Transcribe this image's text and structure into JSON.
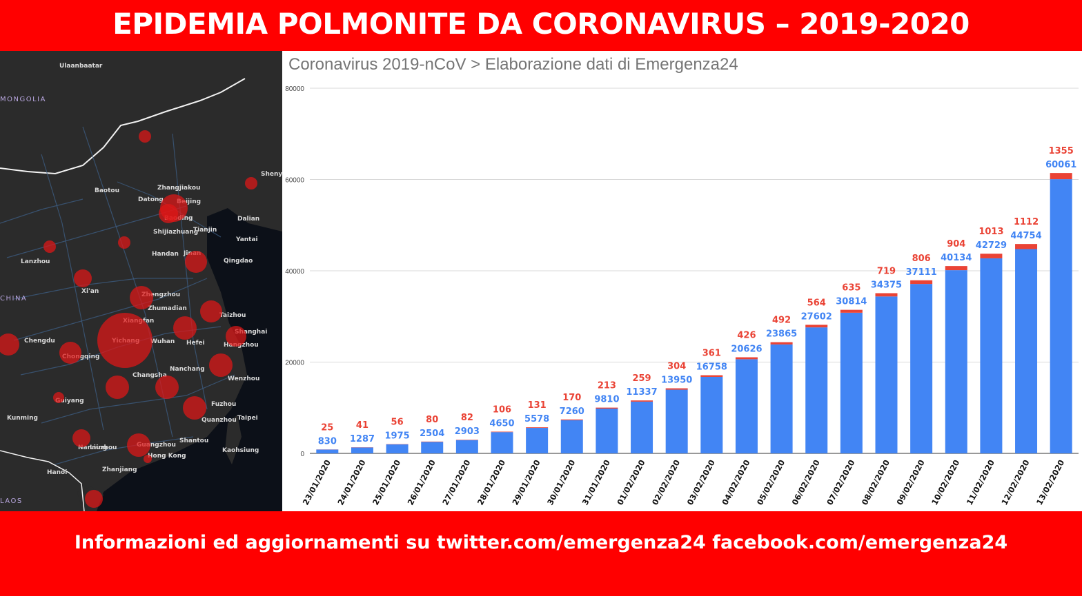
{
  "header": {
    "title": "EPIDEMIA POLMONITE DA CORONAVIRUS – 2019-2020"
  },
  "footer": {
    "text": "Informazioni ed aggiornamenti su twitter.com/emergenza24  facebook.com/emergenza24"
  },
  "map": {
    "labels": [
      "Ulaanbaatar",
      "MONGOLIA",
      "CHINA",
      "Baotou",
      "Datong",
      "Zhangjiakou",
      "Beijing",
      "Baoding",
      "Shijiazhuang",
      "Tianjin",
      "Dalian",
      "Shenyang",
      "Yantai",
      "Qingdao",
      "Jinan",
      "Handan",
      "Lanzhou",
      "Zhengzhou",
      "Xi'an",
      "Zhumadian",
      "Xiangfan",
      "Yichang",
      "Wuhan",
      "Hefei",
      "Taizhou",
      "Shanghai",
      "Hangzhou",
      "Chengdu",
      "Chongqing",
      "Changsha",
      "Nanchang",
      "Wenzhou",
      "Guiyang",
      "Kunming",
      "Fuzhou",
      "Quanzhou",
      "Taipei",
      "Liuzhou",
      "Nanning",
      "Guangzhou",
      "Shantou",
      "Hong Kong",
      "Kaohsiung",
      "Zhanjiang",
      "Hanoi",
      "LAOS"
    ]
  },
  "chart_data": {
    "type": "bar",
    "stacked": true,
    "title": "Coronavirus 2019-nCoV > Elaborazione dati di Emergenza24",
    "categories": [
      "23/01/2020",
      "24/01/2020",
      "25/01/2020",
      "26/01/2020",
      "27/01/2020",
      "28/01/2020",
      "29/01/2020",
      "30/01/2020",
      "31/01/2020",
      "01/02/2020",
      "02/02/2020",
      "03/02/2020",
      "04/02/2020",
      "05/02/2020",
      "06/02/2020",
      "07/02/2020",
      "08/02/2020",
      "09/02/2020",
      "10/02/2020",
      "11/02/2020",
      "12/02/2020",
      "13/02/2020"
    ],
    "series": [
      {
        "values": [
          830,
          1287,
          1975,
          2504,
          2903,
          4650,
          5578,
          7260,
          9810,
          11337,
          13950,
          16758,
          20626,
          23865,
          27602,
          30814,
          34375,
          37111,
          40134,
          42729,
          44754,
          60061
        ],
        "color": "#4285f4"
      },
      {
        "values": [
          25,
          41,
          56,
          80,
          82,
          106,
          131,
          170,
          213,
          259,
          304,
          361,
          426,
          492,
          564,
          635,
          719,
          806,
          904,
          1013,
          1112,
          1355
        ],
        "color": "#ea4335"
      }
    ],
    "ylim": [
      0,
      80000
    ],
    "yticks": [
      "0",
      "20000",
      "40000",
      "60000",
      "80000"
    ],
    "grid": true,
    "legend": "none"
  }
}
